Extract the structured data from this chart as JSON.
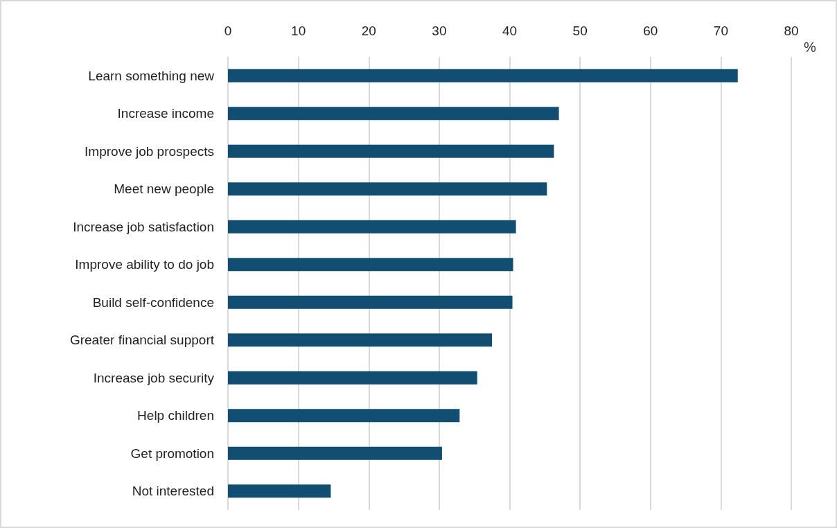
{
  "chart_data": {
    "type": "bar",
    "orientation": "horizontal",
    "xlabel": "%",
    "categories": [
      "Learn something new",
      "Increase income",
      "Improve job prospects",
      "Meet new people",
      "Increase job satisfaction",
      "Improve ability to do job",
      "Build self-confidence",
      "Greater financial support",
      "Increase job security",
      "Help children",
      "Get promotion",
      "Not interested"
    ],
    "values": [
      72.4,
      47.0,
      46.3,
      45.3,
      40.9,
      40.5,
      40.4,
      37.5,
      35.4,
      32.9,
      30.4,
      14.6
    ],
    "color": "#114e72",
    "xlim": [
      0,
      80
    ],
    "xticks": [
      0,
      10,
      20,
      30,
      40,
      50,
      60,
      70,
      80
    ],
    "grid": "x"
  }
}
